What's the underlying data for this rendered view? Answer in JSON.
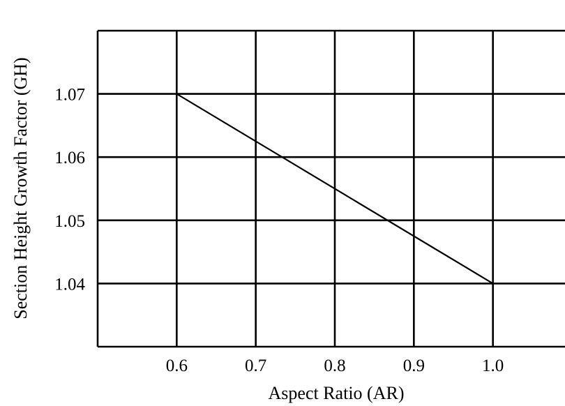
{
  "chart_data": {
    "type": "line",
    "title": "",
    "xlabel": "Aspect Ratio (AR)",
    "ylabel": "Section Height Growth Factor (GH)",
    "xlim": [
      0.5,
      1.1
    ],
    "ylim": [
      1.03,
      1.08
    ],
    "x_ticks": [
      "0.6",
      "0.7",
      "0.8",
      "0.9",
      "1.0"
    ],
    "y_ticks": [
      "1.07",
      "1.06",
      "1.05",
      "1.04"
    ],
    "grid": true,
    "series": [
      {
        "x": [
          0.6,
          1.0
        ],
        "y": [
          1.07,
          1.04
        ]
      }
    ]
  },
  "colors": {
    "line": "#000000",
    "grid": "#000000",
    "background": "#ffffff"
  }
}
